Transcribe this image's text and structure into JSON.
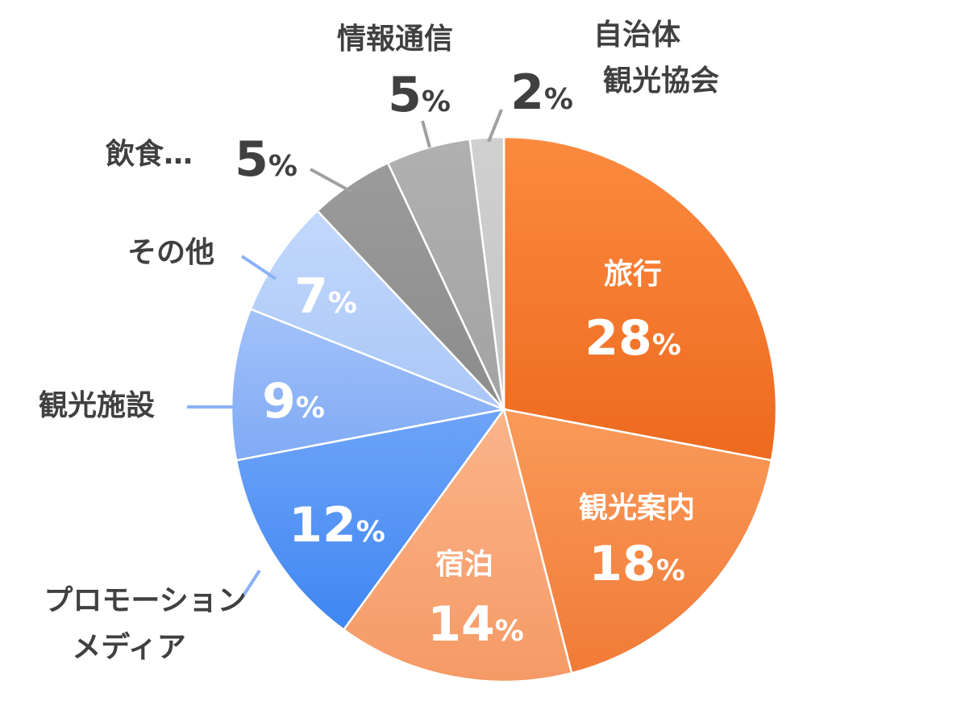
{
  "chart_data": {
    "type": "pie",
    "start": "top",
    "direction": "clockwise",
    "slices": [
      {
        "label": "旅行",
        "value": 28,
        "display": "28",
        "label_lines": [
          "旅行"
        ],
        "color": "#ed6a1f",
        "color_light": "#fb8a3f",
        "label_placement": "inside"
      },
      {
        "label": "観光案内",
        "value": 18,
        "display": "18",
        "label_lines": [
          "観光案内"
        ],
        "color": "#f17b37",
        "color_light": "#fa9a5a",
        "label_placement": "inside"
      },
      {
        "label": "宿泊",
        "value": 14,
        "display": "14",
        "label_lines": [
          "宿泊"
        ],
        "color": "#f59a66",
        "color_light": "#fbb48a",
        "label_placement": "inside"
      },
      {
        "label": "プロモーションメディア",
        "value": 12,
        "display": "12",
        "label_lines": [
          "プロモーション",
          "メディア"
        ],
        "color": "#3f86f2",
        "color_light": "#6ea4f8",
        "label_placement": "outside"
      },
      {
        "label": "観光施設",
        "value": 9,
        "display": "9",
        "label_lines": [
          "観光施設"
        ],
        "color": "#7faaf5",
        "color_light": "#a3c2f9",
        "label_placement": "outside"
      },
      {
        "label": "その他",
        "value": 7,
        "display": "7",
        "label_lines": [
          "その他"
        ],
        "color": "#a9c7f8",
        "color_light": "#c3d8fb",
        "label_placement": "outside"
      },
      {
        "label": "飲食…",
        "value": 5,
        "display": "5",
        "label_lines": [
          "飲食…"
        ],
        "color": "#8c8c8c",
        "color_light": "#9b9b9b",
        "label_placement": "outside"
      },
      {
        "label": "情報通信",
        "value": 5,
        "display": "5",
        "label_lines": [
          "情報通信"
        ],
        "color": "#a3a3a3",
        "color_light": "#b0b0b0",
        "label_placement": "outside"
      },
      {
        "label": "自治体観光協会",
        "value": 2,
        "display": "2",
        "label_lines": [
          "自治体",
          "観光協会"
        ],
        "color": "#c4c4c4",
        "color_light": "#d0d0d0",
        "label_placement": "outside"
      }
    ],
    "percent_sign": "%"
  }
}
